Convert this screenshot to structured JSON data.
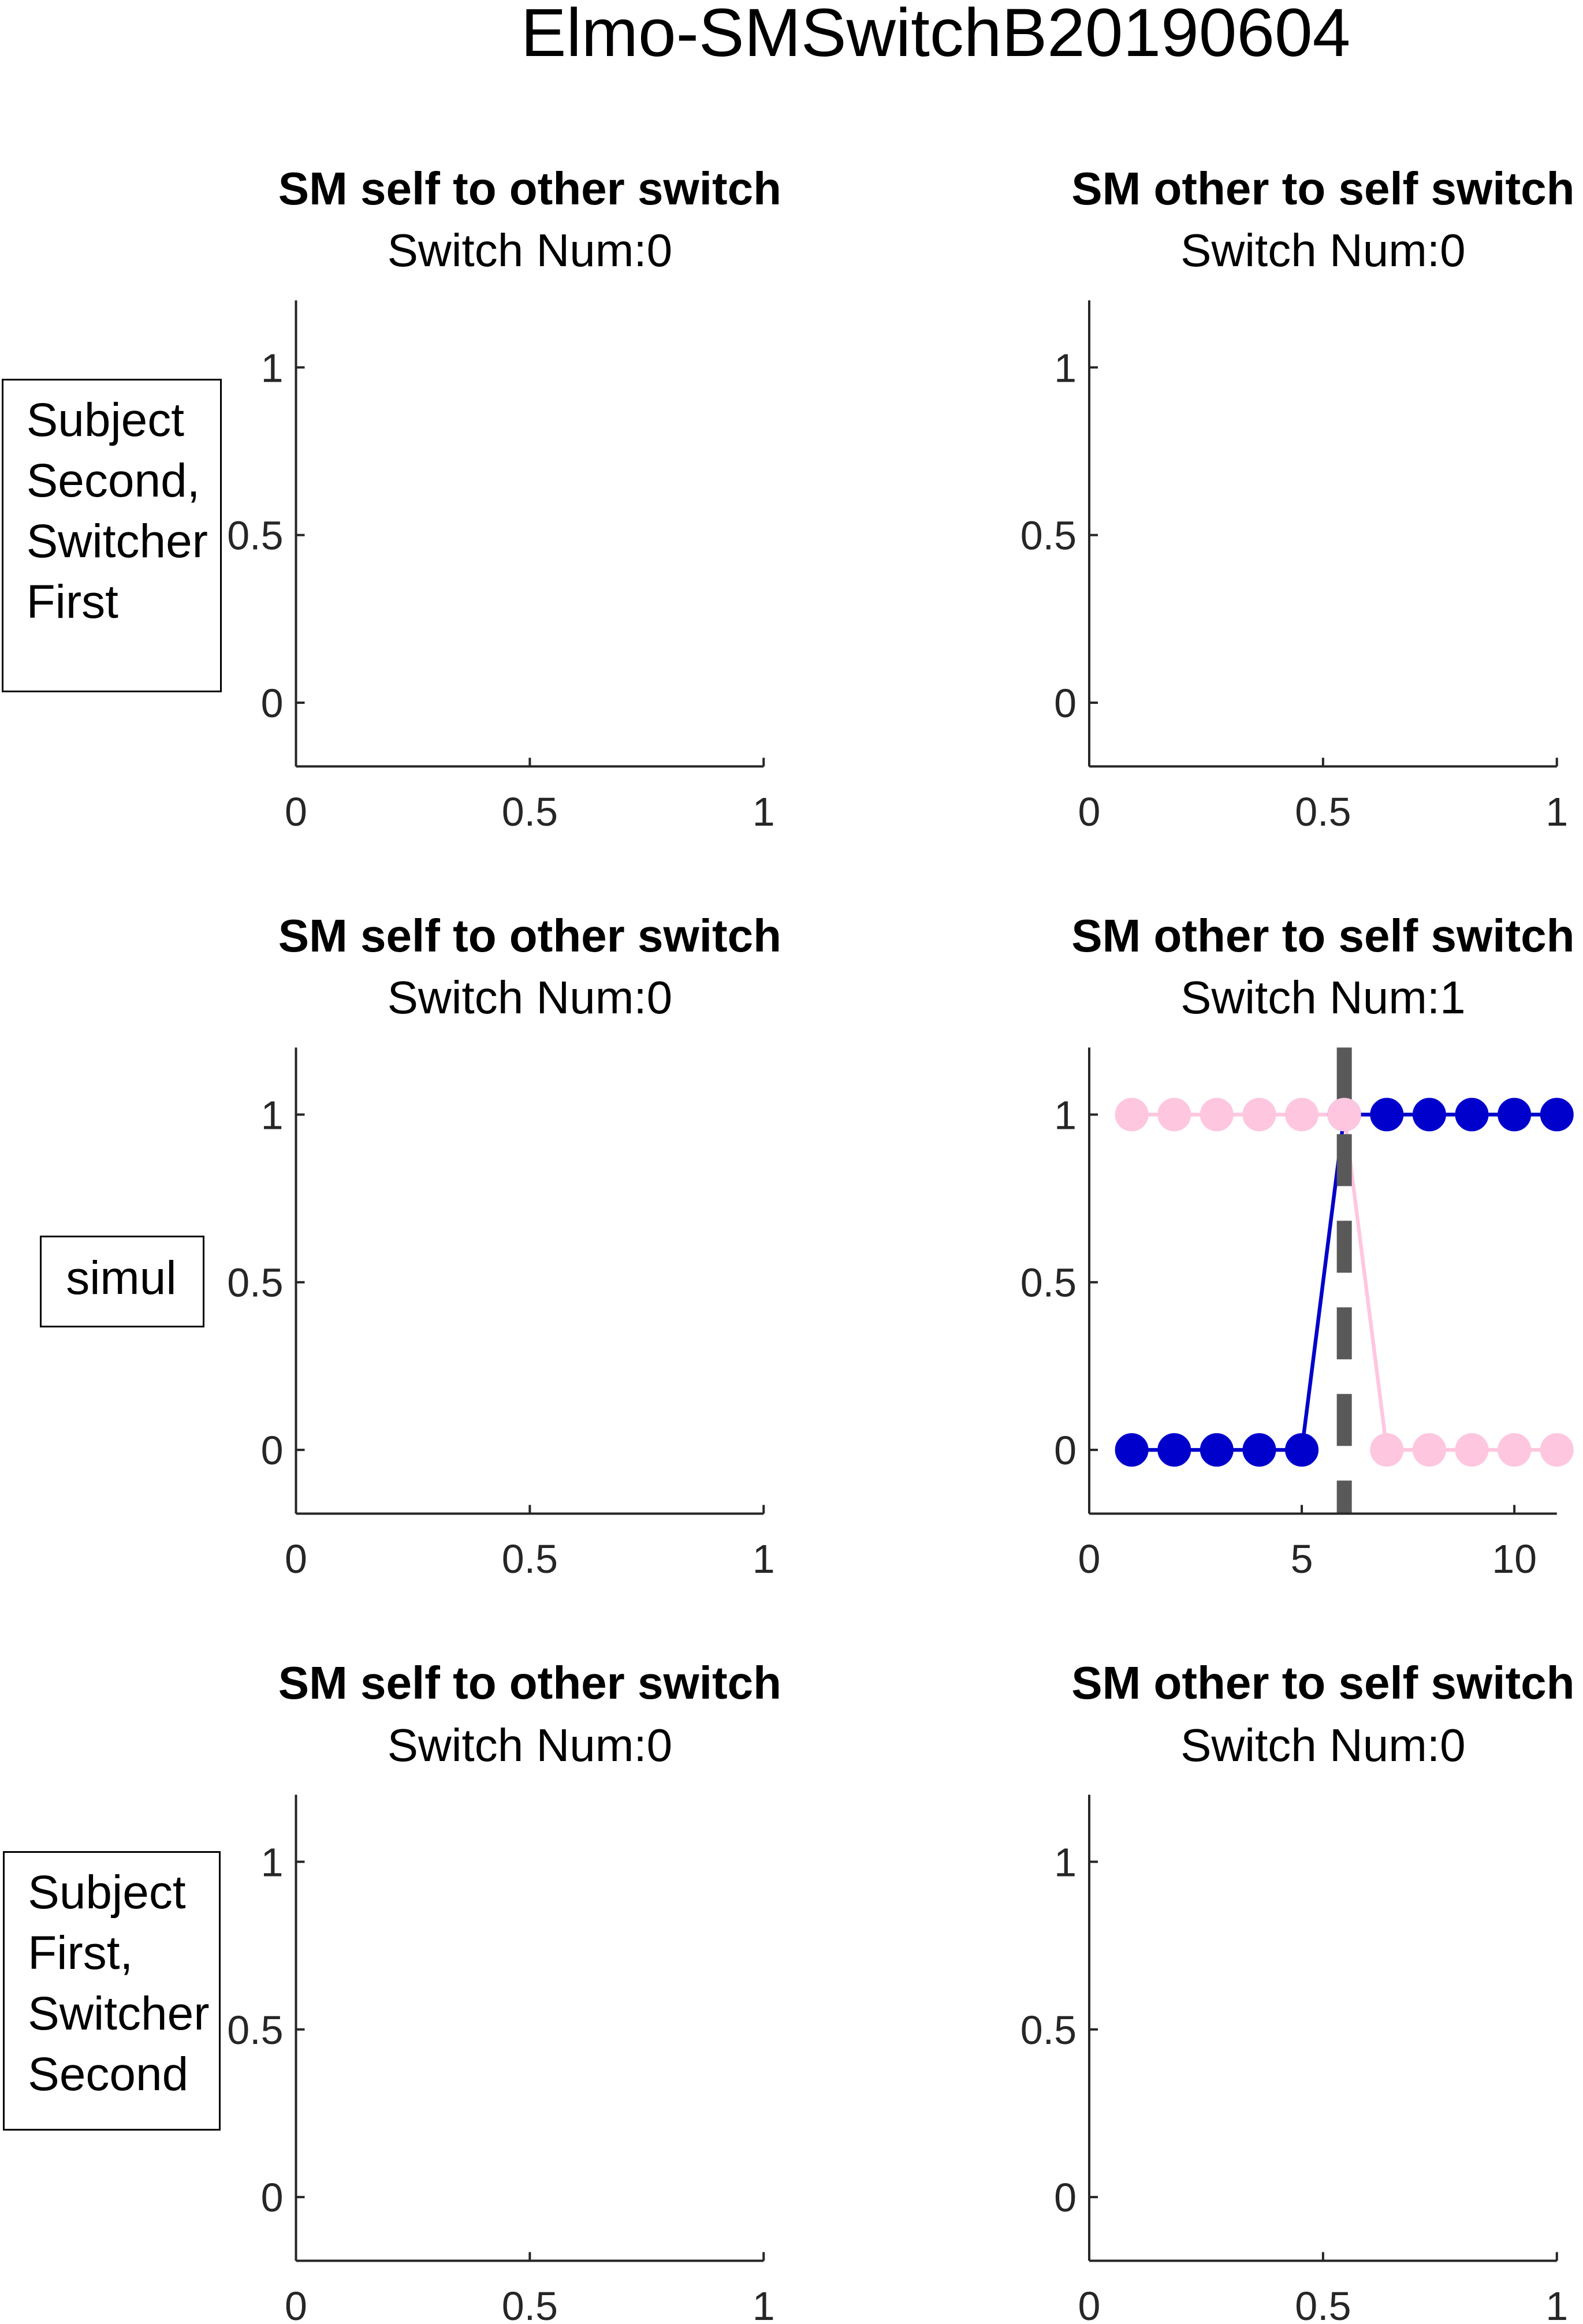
{
  "figure": {
    "suptitle": "Elmo-SMSwitchB20190604"
  },
  "row_labels": [
    {
      "lines": [
        "Subject",
        "Second,",
        "Switcher",
        "First"
      ]
    },
    {
      "lines": [
        "simul"
      ]
    },
    {
      "lines": [
        "Subject",
        "First,",
        "Switcher",
        "Second"
      ]
    }
  ],
  "chart_data": [
    {
      "type": "line",
      "title": "SM self to other switch",
      "subtitle": "Switch Num:0",
      "xlim": [
        0,
        1
      ],
      "ylim": [
        -0.19,
        1.2
      ],
      "xticks": [
        "0",
        "0.5",
        "1"
      ],
      "yticks": [
        "0",
        "0.5",
        "1"
      ],
      "series": []
    },
    {
      "type": "line",
      "title": "SM other to self switch",
      "subtitle": "Switch Num:0",
      "xlim": [
        0,
        1
      ],
      "ylim": [
        -0.19,
        1.2
      ],
      "xticks": [
        "0",
        "0.5",
        "1"
      ],
      "yticks": [
        "0",
        "0.5",
        "1"
      ],
      "series": []
    },
    {
      "type": "line",
      "title": "SM self to other switch",
      "subtitle": "Switch Num:0",
      "xlim": [
        0,
        1
      ],
      "ylim": [
        -0.19,
        1.2
      ],
      "xticks": [
        "0",
        "0.5",
        "1"
      ],
      "yticks": [
        "0",
        "0.5",
        "1"
      ],
      "series": []
    },
    {
      "type": "line",
      "title": "SM other to self switch",
      "subtitle": "Switch Num:1",
      "xlim": [
        0,
        11
      ],
      "ylim": [
        -0.19,
        1.2
      ],
      "xticks": [
        "0",
        "5",
        "10"
      ],
      "yticks": [
        "0",
        "0.5",
        "1"
      ],
      "series": [
        {
          "color": "#0000cc",
          "x": [
            1,
            2,
            3,
            4,
            5,
            6,
            7,
            8,
            9,
            10,
            11
          ],
          "y": [
            0,
            0,
            0,
            0,
            0,
            1,
            1,
            1,
            1,
            1,
            1
          ]
        },
        {
          "color": "#ffc6e0",
          "x": [
            1,
            2,
            3,
            4,
            5,
            6,
            7,
            8,
            9,
            10,
            11
          ],
          "y": [
            1,
            1,
            1,
            1,
            1,
            1,
            0,
            0,
            0,
            0,
            0
          ]
        }
      ],
      "switch_marker": {
        "x": 6,
        "color": "#595959",
        "style": "dashed"
      }
    },
    {
      "type": "line",
      "title": "SM self to other switch",
      "subtitle": "Switch Num:0",
      "xlim": [
        0,
        1
      ],
      "ylim": [
        -0.19,
        1.2
      ],
      "xticks": [
        "0",
        "0.5",
        "1"
      ],
      "yticks": [
        "0",
        "0.5",
        "1"
      ],
      "series": []
    },
    {
      "type": "line",
      "title": "SM other to self switch",
      "subtitle": "Switch Num:0",
      "xlim": [
        0,
        1
      ],
      "ylim": [
        -0.19,
        1.2
      ],
      "xticks": [
        "0",
        "0.5",
        "1"
      ],
      "yticks": [
        "0",
        "0.5",
        "1"
      ],
      "series": []
    }
  ]
}
